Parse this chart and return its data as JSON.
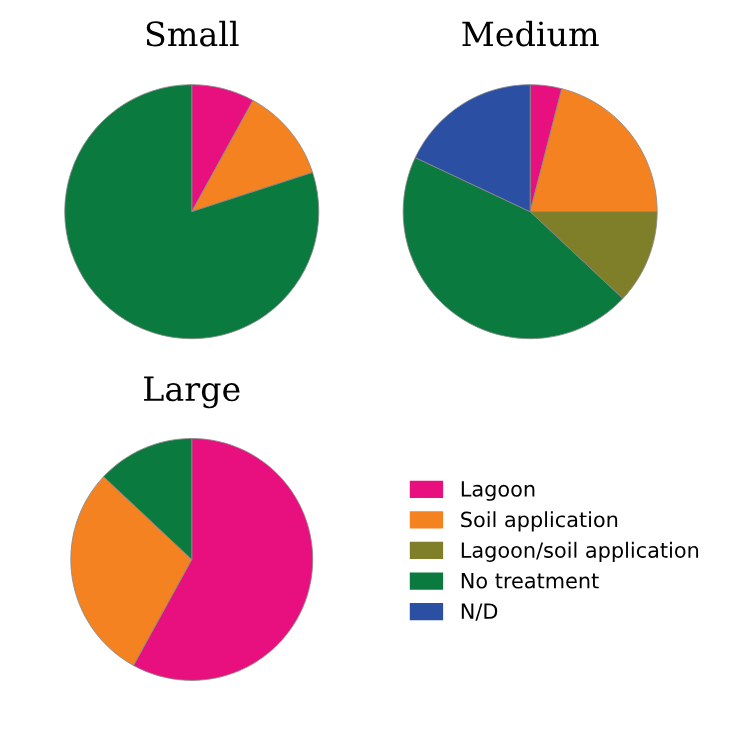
{
  "chart_data": {
    "type": "pie",
    "categories": [
      "Lagoon",
      "Soil application",
      "Lagoon/soil application",
      "No treatment",
      "N/D"
    ],
    "colors": [
      "#e8107f",
      "#f58220",
      "#7f7f2a",
      "#0b7a3e",
      "#2b4fa3"
    ],
    "legend": "bottom right",
    "series": [
      {
        "name": "Small",
        "values": [
          8,
          12,
          null,
          80,
          null
        ]
      },
      {
        "name": "Medium",
        "values": [
          4,
          21,
          12,
          45,
          18
        ]
      },
      {
        "name": "Large",
        "values": [
          58,
          29,
          null,
          13,
          null
        ]
      }
    ]
  }
}
